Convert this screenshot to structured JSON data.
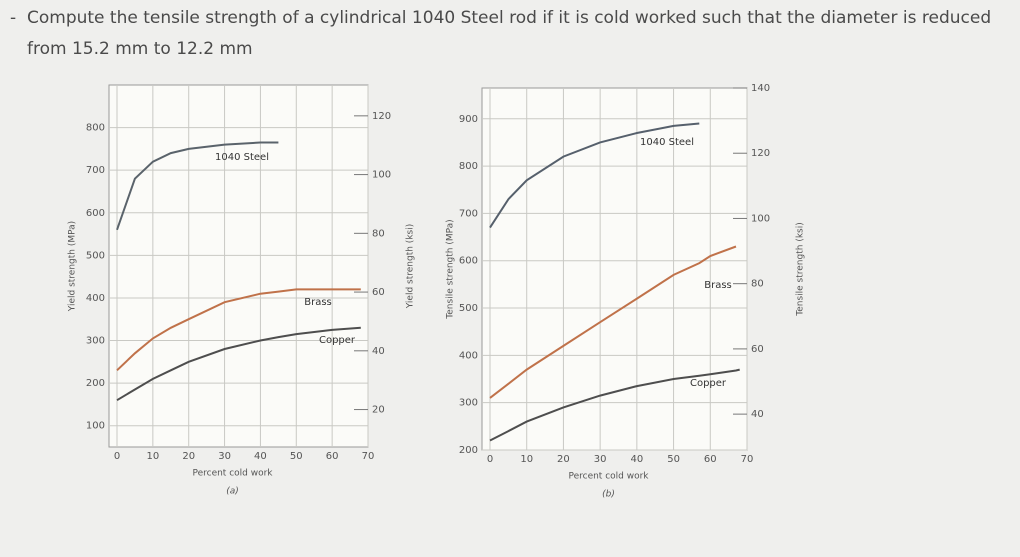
{
  "bullet": "-",
  "question": [
    "Compute the tensile strength of a cylindrical 1040 Steel rod if it is cold worked such that the diameter is reduced",
    "from 15.2 mm to 12.2 mm"
  ],
  "chart_data": [
    {
      "type": "line",
      "caption": "(a)",
      "x_label": "Percent cold work",
      "y_label": "Yield strength (MPa)",
      "y2_label": "Yield strength (ksi)",
      "x": [
        0,
        5,
        10,
        15,
        20,
        30,
        40,
        45,
        50,
        60,
        68
      ],
      "series": [
        {
          "name": "1040 Steel",
          "color": "#5a636b",
          "values": [
            560,
            680,
            720,
            740,
            750,
            760,
            765,
            765,
            null,
            null,
            null
          ]
        },
        {
          "name": "Brass",
          "color": "#c0724a",
          "values": [
            230,
            270,
            305,
            330,
            350,
            390,
            410,
            415,
            420,
            420,
            420
          ]
        },
        {
          "name": "Copper",
          "color": "#4e4e4e",
          "values": [
            160,
            185,
            210,
            230,
            250,
            280,
            300,
            308,
            315,
            325,
            330
          ]
        }
      ],
      "xlim": [
        0,
        70
      ],
      "xticks": [
        0,
        10,
        20,
        30,
        40,
        50,
        60,
        70
      ],
      "ylim": [
        50,
        900
      ],
      "yticks": [
        100,
        200,
        300,
        400,
        500,
        600,
        700,
        800
      ],
      "y2lim": [
        7.25,
        130.5
      ],
      "y2ticks": [
        20,
        40,
        60,
        80,
        100,
        120
      ],
      "grid": true
    },
    {
      "type": "line",
      "caption": "(b)",
      "x_label": "Percent cold work",
      "y_label": "Tensile strength (MPa)",
      "y2_label": "Tensile strength (ksi)",
      "x": [
        0,
        5,
        10,
        20,
        30,
        40,
        50,
        57,
        60,
        67,
        68
      ],
      "series": [
        {
          "name": "1040 Steel",
          "color": "#56606c",
          "values": [
            670,
            730,
            770,
            820,
            850,
            870,
            885,
            890,
            null,
            null,
            null
          ]
        },
        {
          "name": "Brass",
          "color": "#c0724a",
          "values": [
            310,
            340,
            370,
            420,
            470,
            520,
            570,
            595,
            610,
            630,
            null
          ]
        },
        {
          "name": "Copper",
          "color": "#4e4e4e",
          "values": [
            220,
            240,
            260,
            290,
            315,
            335,
            350,
            357,
            360,
            368,
            370
          ]
        }
      ],
      "xlim": [
        0,
        70
      ],
      "xticks": [
        0,
        10,
        20,
        30,
        40,
        50,
        60,
        70
      ],
      "ylim": [
        200,
        965
      ],
      "yticks": [
        200,
        300,
        400,
        500,
        600,
        700,
        800,
        900
      ],
      "y2lim": [
        29,
        140
      ],
      "y2ticks": [
        40,
        60,
        80,
        100,
        120,
        140
      ],
      "grid": true
    }
  ]
}
